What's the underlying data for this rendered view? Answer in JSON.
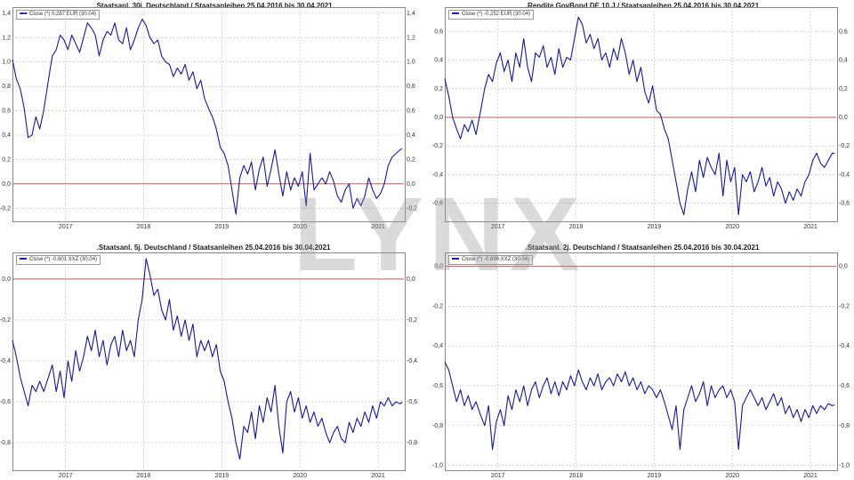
{
  "watermark": "LYNX",
  "colors": {
    "line": "#1a1a8f",
    "zero": "#b24a4a",
    "grid": "#bdbdbd",
    "frame": "#888888"
  },
  "chart_data": [
    {
      "type": "line",
      "title": ".Staatsanl. 30j. Deutschland / Staatsanleihen 25.04.2016 bis 30.04.2021",
      "legend": "Close (*) 0,287 EUR (30.04)",
      "ylim": [
        -0.3,
        1.45
      ],
      "yticks": [
        -0.2,
        0,
        0.2,
        0.4,
        0.6,
        0.8,
        1.0,
        1.2,
        1.4
      ],
      "ytick_labels": [
        "-0,2",
        "0,0",
        "0,2",
        "0,4",
        "0,6",
        "0,8",
        "1,0",
        "1,2",
        "1,4"
      ],
      "xlim": [
        2016.32,
        2021.33
      ],
      "xticks": [
        2017,
        2018,
        2019,
        2020,
        2021
      ],
      "xtick_labels": [
        "2017",
        "2018",
        "2019",
        "2020",
        "2021"
      ],
      "zero_line": 0,
      "x": [
        2016.32,
        2016.37,
        2016.42,
        2016.47,
        2016.52,
        2016.57,
        2016.62,
        2016.67,
        2016.72,
        2016.78,
        2016.83,
        2016.88,
        2016.93,
        2016.98,
        2017.03,
        2017.08,
        2017.13,
        2017.18,
        2017.23,
        2017.28,
        2017.33,
        2017.38,
        2017.43,
        2017.48,
        2017.53,
        2017.58,
        2017.63,
        2017.68,
        2017.73,
        2017.78,
        2017.83,
        2017.88,
        2017.93,
        2017.98,
        2018.03,
        2018.08,
        2018.13,
        2018.18,
        2018.23,
        2018.28,
        2018.33,
        2018.38,
        2018.43,
        2018.48,
        2018.53,
        2018.58,
        2018.63,
        2018.68,
        2018.73,
        2018.78,
        2018.83,
        2018.88,
        2018.93,
        2018.98,
        2019.03,
        2019.08,
        2019.13,
        2019.18,
        2019.23,
        2019.28,
        2019.33,
        2019.38,
        2019.43,
        2019.48,
        2019.53,
        2019.58,
        2019.63,
        2019.68,
        2019.73,
        2019.78,
        2019.83,
        2019.88,
        2019.93,
        2019.98,
        2020.03,
        2020.08,
        2020.13,
        2020.18,
        2020.23,
        2020.28,
        2020.33,
        2020.38,
        2020.43,
        2020.48,
        2020.53,
        2020.58,
        2020.63,
        2020.68,
        2020.73,
        2020.78,
        2020.83,
        2020.88,
        2020.93,
        2020.98,
        2021.03,
        2021.08,
        2021.13,
        2021.18,
        2021.23,
        2021.28,
        2021.31
      ],
      "y": [
        1.02,
        0.86,
        0.78,
        0.62,
        0.38,
        0.4,
        0.55,
        0.45,
        0.6,
        0.85,
        1.05,
        1.1,
        1.22,
        1.18,
        1.1,
        1.22,
        1.15,
        1.08,
        1.2,
        1.32,
        1.28,
        1.22,
        1.05,
        1.18,
        1.25,
        1.22,
        1.32,
        1.18,
        1.15,
        1.28,
        1.1,
        1.18,
        1.28,
        1.35,
        1.3,
        1.2,
        1.15,
        1.18,
        1.05,
        1.0,
        0.98,
        0.88,
        0.95,
        0.9,
        0.98,
        0.85,
        0.92,
        0.78,
        0.85,
        0.7,
        0.62,
        0.55,
        0.45,
        0.3,
        0.25,
        0.15,
        -0.05,
        -0.25,
        0.05,
        0.15,
        0.08,
        0.18,
        -0.05,
        0.12,
        0.22,
        -0.02,
        0.12,
        0.28,
        0.08,
        -0.1,
        0.1,
        -0.05,
        0.05,
        -0.02,
        0.1,
        -0.18,
        0.25,
        -0.05,
        0.0,
        0.05,
        0.0,
        0.1,
        0.02,
        -0.1,
        -0.15,
        -0.05,
        0.0,
        -0.2,
        -0.12,
        -0.18,
        -0.1,
        0.05,
        -0.05,
        -0.12,
        -0.08,
        0.0,
        0.15,
        0.22,
        0.25,
        0.28,
        0.287
      ]
    },
    {
      "type": "line",
      "title": ".Rendite GovBond DE 10 J / Staatsanleihen 25.04.2016 bis 30.04.2021",
      "legend": "Close (*) -0,252 EUR (30.04)",
      "ylim": [
        -0.72,
        0.77
      ],
      "yticks": [
        -0.6,
        -0.4,
        -0.2,
        0,
        0.2,
        0.4,
        0.6
      ],
      "ytick_labels": [
        "-0,6",
        "-0,4",
        "-0,2",
        "0,0",
        "0,2",
        "0,4",
        "0,6"
      ],
      "xlim": [
        2016.32,
        2021.33
      ],
      "xticks": [
        2017,
        2018,
        2019,
        2020,
        2021
      ],
      "xtick_labels": [
        "2017",
        "2018",
        "2019",
        "2020",
        "2021"
      ],
      "zero_line": 0,
      "x": [
        2016.32,
        2016.37,
        2016.42,
        2016.47,
        2016.52,
        2016.57,
        2016.62,
        2016.67,
        2016.72,
        2016.78,
        2016.83,
        2016.88,
        2016.93,
        2016.98,
        2017.03,
        2017.08,
        2017.13,
        2017.18,
        2017.23,
        2017.28,
        2017.33,
        2017.38,
        2017.43,
        2017.48,
        2017.53,
        2017.58,
        2017.63,
        2017.68,
        2017.73,
        2017.78,
        2017.83,
        2017.88,
        2017.93,
        2017.98,
        2018.03,
        2018.08,
        2018.13,
        2018.18,
        2018.23,
        2018.28,
        2018.33,
        2018.38,
        2018.43,
        2018.48,
        2018.53,
        2018.58,
        2018.63,
        2018.68,
        2018.73,
        2018.78,
        2018.83,
        2018.88,
        2018.93,
        2018.98,
        2019.03,
        2019.08,
        2019.13,
        2019.18,
        2019.23,
        2019.28,
        2019.33,
        2019.38,
        2019.43,
        2019.48,
        2019.53,
        2019.58,
        2019.63,
        2019.68,
        2019.73,
        2019.78,
        2019.83,
        2019.88,
        2019.93,
        2019.98,
        2020.03,
        2020.08,
        2020.13,
        2020.18,
        2020.23,
        2020.28,
        2020.33,
        2020.38,
        2020.43,
        2020.48,
        2020.53,
        2020.58,
        2020.63,
        2020.68,
        2020.73,
        2020.78,
        2020.83,
        2020.88,
        2020.93,
        2020.98,
        2021.03,
        2021.08,
        2021.13,
        2021.18,
        2021.23,
        2021.28,
        2021.31
      ],
      "y": [
        0.27,
        0.15,
        0.0,
        -0.08,
        -0.15,
        -0.05,
        -0.1,
        -0.02,
        -0.12,
        0.05,
        0.2,
        0.3,
        0.25,
        0.38,
        0.45,
        0.32,
        0.4,
        0.25,
        0.45,
        0.35,
        0.55,
        0.35,
        0.25,
        0.45,
        0.42,
        0.5,
        0.35,
        0.42,
        0.3,
        0.48,
        0.35,
        0.42,
        0.4,
        0.55,
        0.7,
        0.65,
        0.52,
        0.58,
        0.48,
        0.55,
        0.4,
        0.45,
        0.35,
        0.48,
        0.4,
        0.55,
        0.45,
        0.3,
        0.4,
        0.25,
        0.35,
        0.18,
        0.1,
        0.22,
        0.05,
        0.02,
        -0.08,
        -0.15,
        -0.3,
        -0.45,
        -0.6,
        -0.68,
        -0.5,
        -0.38,
        -0.52,
        -0.3,
        -0.42,
        -0.28,
        -0.35,
        -0.4,
        -0.25,
        -0.55,
        -0.3,
        -0.45,
        -0.35,
        -0.68,
        -0.4,
        -0.45,
        -0.38,
        -0.52,
        -0.45,
        -0.35,
        -0.48,
        -0.42,
        -0.55,
        -0.45,
        -0.5,
        -0.6,
        -0.52,
        -0.58,
        -0.5,
        -0.55,
        -0.45,
        -0.4,
        -0.3,
        -0.25,
        -0.32,
        -0.35,
        -0.3,
        -0.25,
        -0.252
      ]
    },
    {
      "type": "line",
      "title": ".Staatsanl. 5j. Deutschland / Staatsanleihen 25.04.2016 bis 30.04.2021",
      "legend": "Close (*) -0,601 XXZ (30.04)",
      "ylim": [
        -0.93,
        0.13
      ],
      "yticks": [
        -0.8,
        -0.6,
        -0.4,
        -0.2,
        0
      ],
      "ytick_labels": [
        "-0,8",
        "-0,6",
        "-0,4",
        "-0,2",
        "0,0"
      ],
      "xlim": [
        2016.32,
        2021.33
      ],
      "xticks": [
        2017,
        2018,
        2019,
        2020,
        2021
      ],
      "xtick_labels": [
        "2017",
        "2018",
        "2019",
        "2020",
        "2021"
      ],
      "zero_line": 0,
      "x": [
        2016.32,
        2016.37,
        2016.42,
        2016.47,
        2016.52,
        2016.57,
        2016.62,
        2016.67,
        2016.72,
        2016.78,
        2016.83,
        2016.88,
        2016.93,
        2016.98,
        2017.03,
        2017.08,
        2017.13,
        2017.18,
        2017.23,
        2017.28,
        2017.33,
        2017.38,
        2017.43,
        2017.48,
        2017.53,
        2017.58,
        2017.63,
        2017.68,
        2017.73,
        2017.78,
        2017.83,
        2017.88,
        2017.93,
        2017.98,
        2018.03,
        2018.08,
        2018.13,
        2018.18,
        2018.23,
        2018.28,
        2018.33,
        2018.38,
        2018.43,
        2018.48,
        2018.53,
        2018.58,
        2018.63,
        2018.68,
        2018.73,
        2018.78,
        2018.83,
        2018.88,
        2018.93,
        2018.98,
        2019.03,
        2019.08,
        2019.13,
        2019.18,
        2019.23,
        2019.28,
        2019.33,
        2019.38,
        2019.43,
        2019.48,
        2019.53,
        2019.58,
        2019.63,
        2019.68,
        2019.73,
        2019.78,
        2019.83,
        2019.88,
        2019.93,
        2019.98,
        2020.03,
        2020.08,
        2020.13,
        2020.18,
        2020.23,
        2020.28,
        2020.33,
        2020.38,
        2020.43,
        2020.48,
        2020.53,
        2020.58,
        2020.63,
        2020.68,
        2020.73,
        2020.78,
        2020.83,
        2020.88,
        2020.93,
        2020.98,
        2021.03,
        2021.08,
        2021.13,
        2021.18,
        2021.23,
        2021.28,
        2021.31
      ],
      "y": [
        -0.3,
        -0.38,
        -0.48,
        -0.55,
        -0.62,
        -0.52,
        -0.55,
        -0.5,
        -0.55,
        -0.48,
        -0.42,
        -0.55,
        -0.45,
        -0.58,
        -0.4,
        -0.5,
        -0.35,
        -0.45,
        -0.38,
        -0.28,
        -0.35,
        -0.25,
        -0.38,
        -0.3,
        -0.42,
        -0.32,
        -0.28,
        -0.38,
        -0.25,
        -0.35,
        -0.3,
        -0.38,
        -0.2,
        -0.1,
        0.1,
        0.02,
        -0.08,
        -0.05,
        -0.15,
        -0.2,
        -0.1,
        -0.25,
        -0.18,
        -0.28,
        -0.2,
        -0.3,
        -0.22,
        -0.38,
        -0.3,
        -0.35,
        -0.3,
        -0.38,
        -0.32,
        -0.45,
        -0.5,
        -0.6,
        -0.68,
        -0.8,
        -0.88,
        -0.72,
        -0.75,
        -0.65,
        -0.78,
        -0.62,
        -0.7,
        -0.58,
        -0.65,
        -0.52,
        -0.72,
        -0.85,
        -0.6,
        -0.55,
        -0.65,
        -0.58,
        -0.68,
        -0.62,
        -0.7,
        -0.65,
        -0.72,
        -0.68,
        -0.75,
        -0.8,
        -0.75,
        -0.72,
        -0.78,
        -0.8,
        -0.7,
        -0.75,
        -0.68,
        -0.72,
        -0.65,
        -0.7,
        -0.62,
        -0.68,
        -0.6,
        -0.62,
        -0.58,
        -0.62,
        -0.6,
        -0.61,
        -0.601
      ]
    },
    {
      "type": "line",
      "title": ".Staatsanl. 2j. Deutschland / Staatsanleihen 25.04.2016 bis 30.04.2021",
      "legend": "Close (*) -0,696 XXZ (30.04)",
      "ylim": [
        -1.02,
        0.07
      ],
      "yticks": [
        -1.0,
        -0.8,
        -0.6,
        -0.4,
        -0.2,
        0
      ],
      "ytick_labels": [
        "-1,0",
        "-0,8",
        "-0,6",
        "-0,4",
        "-0,2",
        "0,0"
      ],
      "xlim": [
        2016.32,
        2021.33
      ],
      "xticks": [
        2017,
        2018,
        2019,
        2020,
        2021
      ],
      "xtick_labels": [
        "2017",
        "2018",
        "2019",
        "2020",
        "2021"
      ],
      "zero_line": 0,
      "x": [
        2016.32,
        2016.37,
        2016.42,
        2016.47,
        2016.52,
        2016.57,
        2016.62,
        2016.67,
        2016.72,
        2016.78,
        2016.83,
        2016.88,
        2016.93,
        2016.98,
        2017.03,
        2017.08,
        2017.13,
        2017.18,
        2017.23,
        2017.28,
        2017.33,
        2017.38,
        2017.43,
        2017.48,
        2017.53,
        2017.58,
        2017.63,
        2017.68,
        2017.73,
        2017.78,
        2017.83,
        2017.88,
        2017.93,
        2017.98,
        2018.03,
        2018.08,
        2018.13,
        2018.18,
        2018.23,
        2018.28,
        2018.33,
        2018.38,
        2018.43,
        2018.48,
        2018.53,
        2018.58,
        2018.63,
        2018.68,
        2018.73,
        2018.78,
        2018.83,
        2018.88,
        2018.93,
        2018.98,
        2019.03,
        2019.08,
        2019.13,
        2019.18,
        2019.23,
        2019.28,
        2019.33,
        2019.38,
        2019.43,
        2019.48,
        2019.53,
        2019.58,
        2019.63,
        2019.68,
        2019.73,
        2019.78,
        2019.83,
        2019.88,
        2019.93,
        2019.98,
        2020.03,
        2020.08,
        2020.13,
        2020.18,
        2020.23,
        2020.28,
        2020.33,
        2020.38,
        2020.43,
        2020.48,
        2020.53,
        2020.58,
        2020.63,
        2020.68,
        2020.73,
        2020.78,
        2020.83,
        2020.88,
        2020.93,
        2020.98,
        2021.03,
        2021.08,
        2021.13,
        2021.18,
        2021.23,
        2021.28,
        2021.31
      ],
      "y": [
        -0.48,
        -0.52,
        -0.6,
        -0.68,
        -0.62,
        -0.7,
        -0.65,
        -0.72,
        -0.68,
        -0.75,
        -0.8,
        -0.7,
        -0.92,
        -0.78,
        -0.72,
        -0.8,
        -0.65,
        -0.72,
        -0.62,
        -0.68,
        -0.6,
        -0.7,
        -0.62,
        -0.58,
        -0.66,
        -0.6,
        -0.56,
        -0.64,
        -0.58,
        -0.65,
        -0.58,
        -0.62,
        -0.55,
        -0.6,
        -0.52,
        -0.58,
        -0.62,
        -0.56,
        -0.6,
        -0.54,
        -0.62,
        -0.58,
        -0.56,
        -0.6,
        -0.54,
        -0.58,
        -0.53,
        -0.6,
        -0.56,
        -0.62,
        -0.58,
        -0.64,
        -0.6,
        -0.62,
        -0.66,
        -0.62,
        -0.68,
        -0.75,
        -0.82,
        -0.7,
        -0.92,
        -0.72,
        -0.66,
        -0.6,
        -0.68,
        -0.64,
        -0.58,
        -0.7,
        -0.6,
        -0.66,
        -0.62,
        -0.6,
        -0.66,
        -0.62,
        -0.68,
        -0.92,
        -0.7,
        -0.66,
        -0.62,
        -0.66,
        -0.7,
        -0.66,
        -0.72,
        -0.68,
        -0.64,
        -0.7,
        -0.66,
        -0.74,
        -0.7,
        -0.76,
        -0.72,
        -0.78,
        -0.72,
        -0.76,
        -0.7,
        -0.74,
        -0.7,
        -0.72,
        -0.69,
        -0.7,
        -0.696
      ]
    }
  ]
}
